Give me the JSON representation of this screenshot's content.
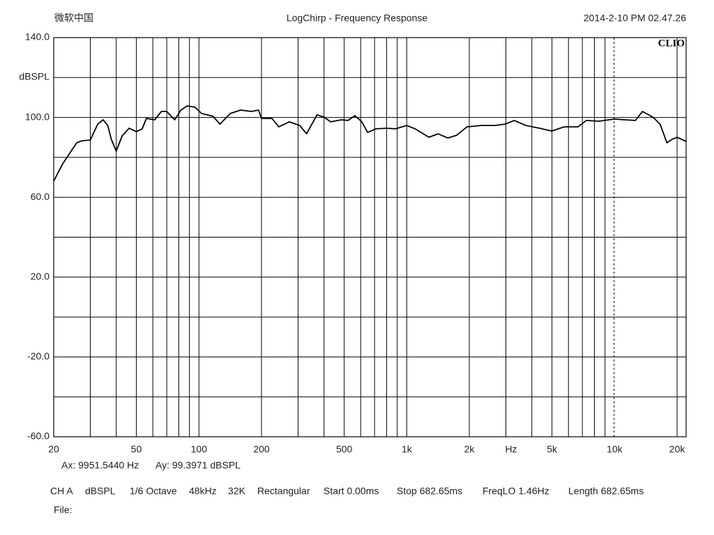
{
  "header": {
    "left": "微软中国",
    "right": "2014-2-10 PM 02.47.26",
    "logo": "CLIO"
  },
  "chart_data": {
    "type": "line",
    "title": "LogChirp - Frequency Response",
    "x_label": "Hz",
    "y_label": "dBSPL",
    "xscale": "log",
    "color": "#000000",
    "xlim": [
      20,
      22100
    ],
    "ylim": [
      -60,
      140
    ],
    "xticks": [
      20,
      50,
      100,
      200,
      500,
      {
        "value": 1000,
        "label": "1k"
      },
      {
        "value": 2000,
        "label": "2k"
      },
      {
        "value": 5000,
        "label": "5k"
      },
      {
        "value": 10000,
        "label": "10k"
      },
      {
        "value": 20000,
        "label": "20k"
      }
    ],
    "yticks": [
      {
        "value": 140,
        "label": "140.0"
      },
      {
        "value": 100,
        "label": "100.0"
      },
      {
        "value": 60,
        "label": "60.0"
      },
      {
        "value": 20,
        "label": "20.0"
      },
      {
        "value": -20,
        "label": "-20.0"
      },
      {
        "value": -60,
        "label": "-60.0"
      }
    ],
    "xgrid": [
      30,
      40,
      50,
      60,
      70,
      80,
      90,
      100,
      200,
      300,
      400,
      500,
      600,
      700,
      800,
      900,
      1000,
      2000,
      3000,
      4000,
      5000,
      6000,
      7000,
      8000,
      9000,
      20000
    ],
    "ygrid": [
      120,
      100,
      80,
      60,
      40,
      20,
      0,
      -20,
      -40
    ],
    "x": [
      20,
      22.1,
      23.9,
      25.8,
      27.3,
      30,
      32.6,
      34.6,
      36.4,
      37.9,
      40,
      42.7,
      46.1,
      50,
      53.3,
      55.9,
      61.2,
      66,
      70,
      76.4,
      81.9,
      87.9,
      95.8,
      103,
      116.8,
      126.3,
      141.6,
      158.7,
      178.8,
      193.6,
      200,
      224.6,
      242.4,
      272.1,
      305.4,
      329.7,
      370,
      399,
      430.7,
      483.4,
      522,
      563,
      608,
      648,
      711,
      800,
      884,
      1000,
      1097,
      1278,
      1415,
      1576,
      1740,
      1950,
      2276,
      2655,
      2978,
      3290,
      3741,
      4363,
      4980,
      5722,
      6672,
      7315,
      8407,
      10000,
      11220,
      12600,
      13620,
      15280,
      16560,
      17870,
      18890,
      20000,
      22100
    ],
    "values": [
      68.1,
      76.8,
      82.1,
      87.3,
      88.3,
      88.7,
      96.7,
      98.8,
      96.0,
      89.0,
      83.1,
      90.8,
      94.6,
      92.9,
      94.3,
      99.5,
      98.8,
      103.0,
      103.0,
      98.8,
      103.7,
      105.8,
      105.1,
      102.0,
      100.6,
      96.7,
      102.0,
      103.7,
      103.0,
      103.7,
      99.5,
      99.5,
      95.3,
      97.8,
      96.0,
      91.8,
      101.3,
      100.2,
      97.8,
      98.8,
      98.5,
      100.9,
      97.8,
      92.5,
      94.3,
      94.6,
      94.3,
      96.0,
      94.3,
      90.1,
      91.8,
      89.7,
      91.1,
      95.3,
      96.0,
      96.0,
      96.7,
      98.5,
      96.0,
      94.6,
      93.2,
      95.3,
      95.3,
      98.5,
      98.1,
      99.2,
      98.8,
      98.5,
      103.0,
      100.2,
      96.7,
      87.3,
      89.0,
      90.1,
      88.0
    ],
    "cursor": {
      "x": 9951.544,
      "label_x": "Ax: 9951.5440 Hz",
      "label_y": "Ay: 99.3971 dBSPL"
    }
  },
  "status": {
    "settings": [
      "CH A",
      "dBSPL",
      "1/6 Octave",
      "48kHz",
      "32K",
      "Rectangular",
      "Start 0.00ms",
      "Stop 682.65ms",
      "FreqLO 1.46Hz",
      "Length 682.65ms"
    ],
    "file": "File:"
  }
}
